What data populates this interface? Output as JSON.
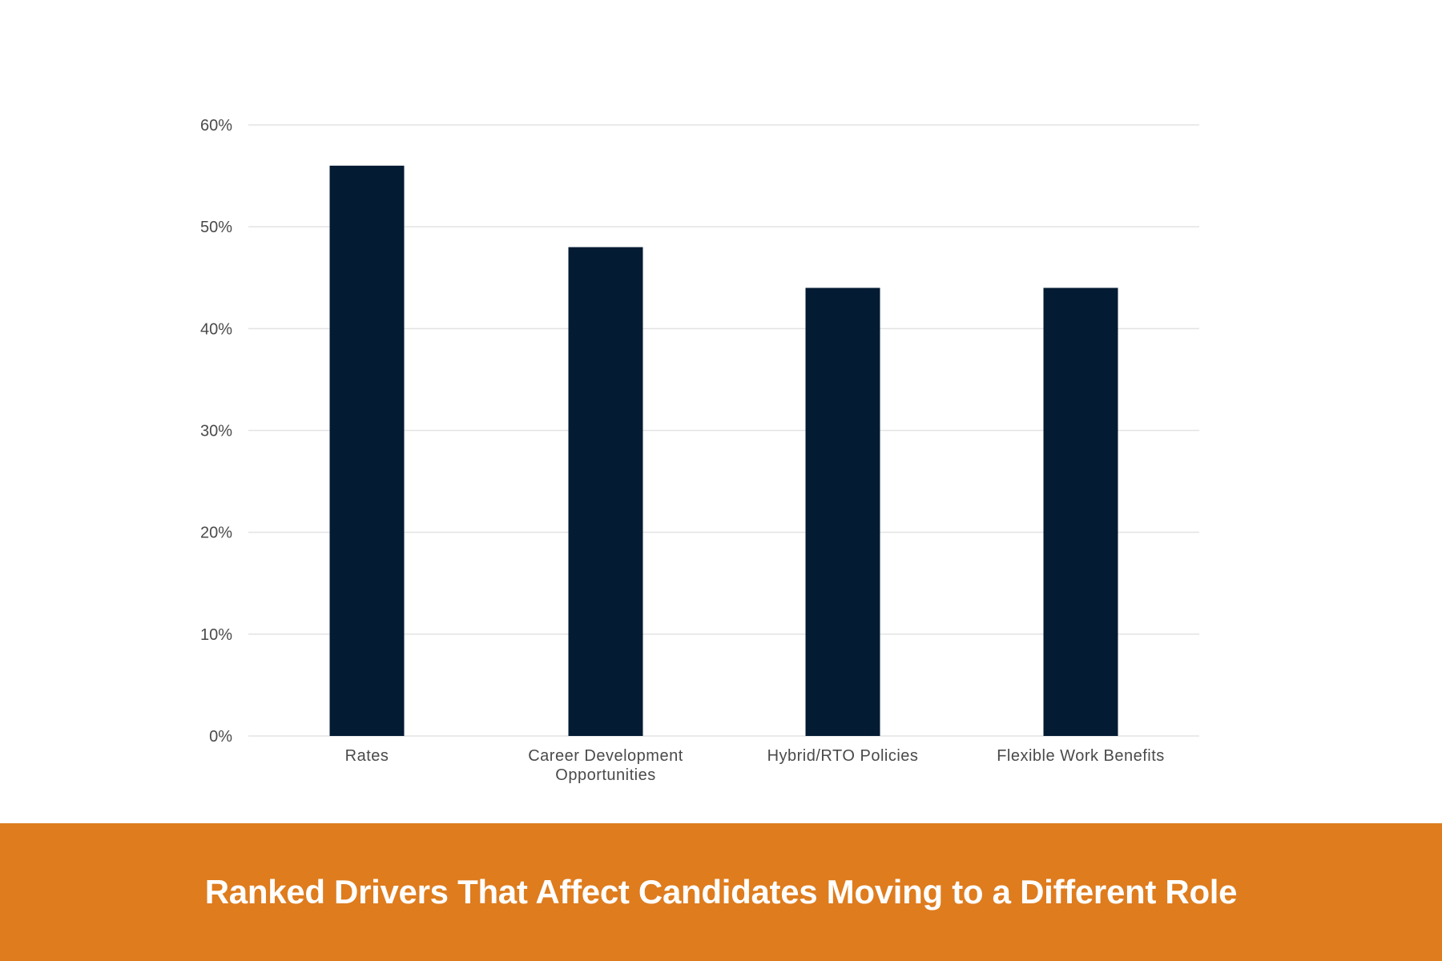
{
  "colors": {
    "bar": "#031b33",
    "banner": "#de7c1e",
    "grid": "#e3e3e3",
    "title_text": "#ffffff"
  },
  "chart_data": {
    "type": "bar",
    "title": "Ranked Drivers That Affect Candidates Moving to a Different Role",
    "xlabel": "",
    "ylabel": "",
    "categories": [
      [
        "Rates"
      ],
      [
        "Career Development",
        "Opportunities"
      ],
      [
        "Hybrid/RTO Policies"
      ],
      [
        "Flexible Work Benefits"
      ]
    ],
    "values": [
      56,
      48,
      44,
      44
    ],
    "ylim": [
      0,
      60
    ],
    "yticks": [
      0,
      10,
      20,
      30,
      40,
      50,
      60
    ],
    "ytick_labels": [
      "0%",
      "10%",
      "20%",
      "30%",
      "40%",
      "50%",
      "60%"
    ],
    "grid": true,
    "legend": "none",
    "title_position": "bottom banner"
  }
}
